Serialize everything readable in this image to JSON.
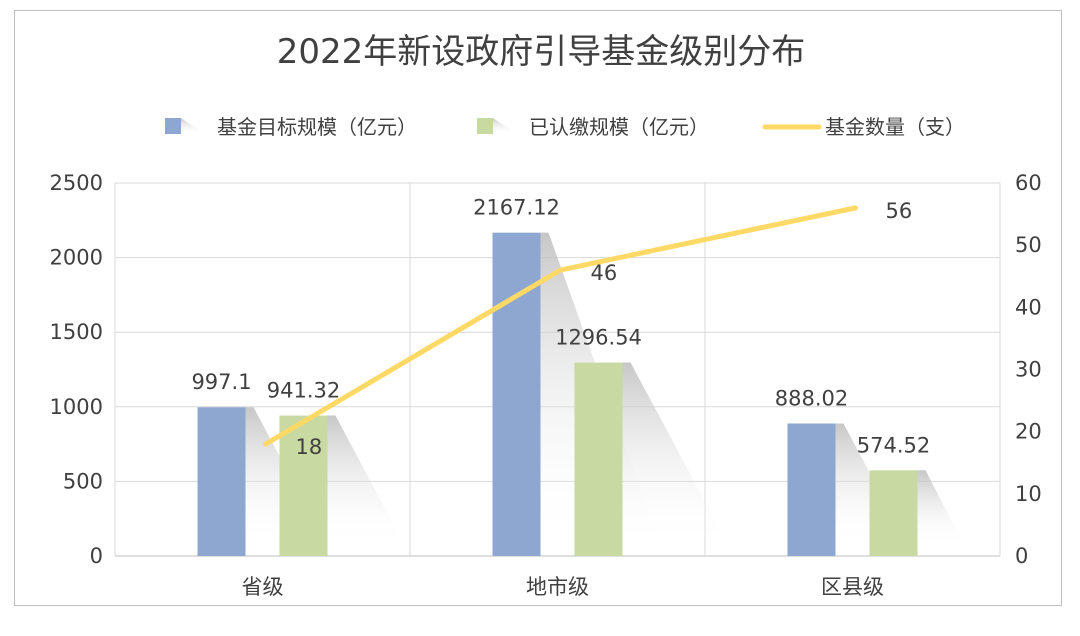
{
  "chart_data": {
    "type": "bar",
    "title": "2022年新设政府引导基金级别分布",
    "categories": [
      "省级",
      "地市级",
      "区县级"
    ],
    "series": [
      {
        "name": "基金目标规模（亿元）",
        "kind": "bar",
        "axis": "left",
        "color": "#8EA7D0",
        "values": [
          997.1,
          2167.12,
          888.02
        ],
        "labels": [
          "997.1",
          "2167.12",
          "888.02"
        ]
      },
      {
        "name": "已认缴规模（亿元）",
        "kind": "bar",
        "axis": "left",
        "color": "#C8D9A2",
        "values": [
          941.32,
          1296.54,
          574.52
        ],
        "labels": [
          "941.32",
          "1296.54",
          "574.52"
        ]
      },
      {
        "name": "基金数量（支）",
        "kind": "line",
        "axis": "right",
        "color": "#FFD966",
        "values": [
          18,
          46,
          56
        ],
        "labels": [
          "18",
          "46",
          "56"
        ]
      }
    ],
    "left_axis": {
      "ylim": [
        0,
        2500
      ],
      "ticks": [
        "0",
        "500",
        "1000",
        "1500",
        "2000",
        "2500"
      ]
    },
    "right_axis": {
      "ylim": [
        0,
        60
      ],
      "ticks": [
        "0",
        "10",
        "20",
        "30",
        "40",
        "50",
        "60"
      ]
    },
    "legend_position": "top",
    "grid": true
  }
}
